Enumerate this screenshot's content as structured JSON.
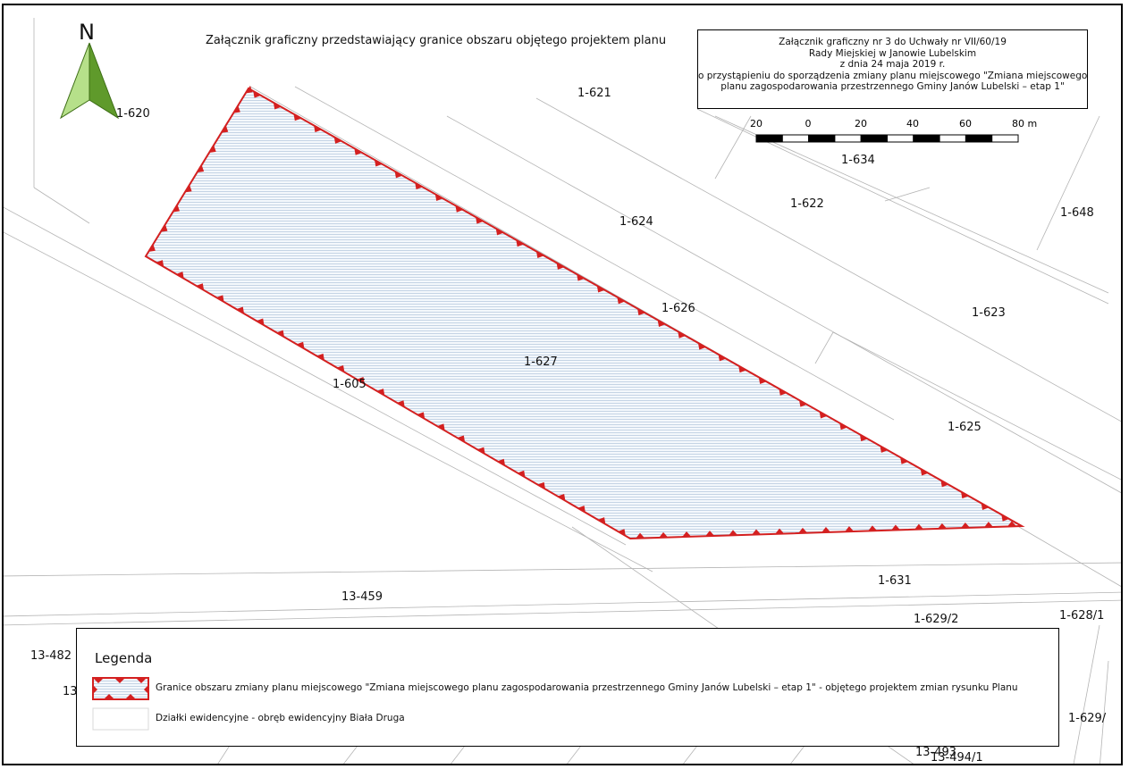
{
  "map": {
    "title": "Załącznik graficzny przedstawiający granice obszaru objętego projektem planu",
    "north_label": "N",
    "info_box": {
      "lines": [
        "Załącznik graficzny nr 3 do Uchwały nr VII/60/19",
        "Rady Miejskiej w Janowie Lubelskim",
        "z dnia 24 maja 2019 r.",
        "o przystąpieniu do sporządzenia zmiany planu miejscowego \"Zmiana miejscowego",
        "planu zagospodarowania przestrzennego Gminy Janów Lubelski – etap 1\""
      ]
    },
    "scale_bar": {
      "labels": [
        "20",
        "0",
        "20",
        "40",
        "60",
        "80 m"
      ]
    },
    "parcels": [
      {
        "id": "1-620"
      },
      {
        "id": "1-621"
      },
      {
        "id": "1-634"
      },
      {
        "id": "1-622"
      },
      {
        "id": "1-648"
      },
      {
        "id": "1-624"
      },
      {
        "id": "1-626"
      },
      {
        "id": "1-623"
      },
      {
        "id": "1-627"
      },
      {
        "id": "1-605"
      },
      {
        "id": "1-625"
      },
      {
        "id": "1-631"
      },
      {
        "id": "13-459"
      },
      {
        "id": "1-629/2"
      },
      {
        "id": "1-628/1"
      },
      {
        "id": "13-482"
      },
      {
        "id": "13"
      },
      {
        "id": "13-493"
      },
      {
        "id": "1-629/"
      },
      {
        "id": "13-494/1"
      }
    ],
    "colors": {
      "boundary": "#d42020",
      "hatch": "#b9cbe0",
      "parcel_line": "#b4b4b4",
      "north_arrow_light": "#b6e08a",
      "north_arrow_dark": "#5f9a2b"
    }
  },
  "legend": {
    "title": "Legenda",
    "items": [
      {
        "label": "Granice obszaru zmiany planu miejscowego \"Zmiana miejscowego planu zagospodarowania przestrzennego Gminy Janów Lubelski – etap 1\" - objętego projektem zmian rysunku Planu"
      },
      {
        "label": "Działki ewidencyjne - obręb ewidencyjny Biała Druga"
      }
    ]
  }
}
